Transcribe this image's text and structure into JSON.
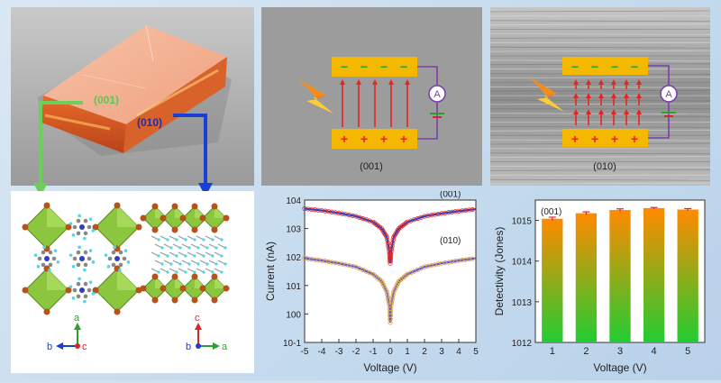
{
  "photo": {
    "label_001": "(001)",
    "label_010": "(010)"
  },
  "structure_left": {
    "axis_a": "a",
    "axis_b": "b",
    "axis_c": "c"
  },
  "structure_right": {
    "axis_c": "c",
    "axis_b": "b",
    "axis_a": "a"
  },
  "device_001": {
    "label": "(001)",
    "meter": "A",
    "top_signs": [
      "−",
      "−",
      "−",
      "−"
    ],
    "bottom_signs": [
      "+",
      "+",
      "+",
      "+"
    ]
  },
  "device_010": {
    "label": "(010)",
    "meter": "A",
    "top_signs": [
      "−",
      "−",
      "−",
      "−"
    ],
    "bottom_signs": [
      "+",
      "+",
      "+",
      "+"
    ]
  },
  "colors": {
    "electrode": "#f4b800",
    "field_arrow": "#e5261f",
    "wire": "#7a3fa8",
    "battery": "#2ca02c",
    "bar_top": "#ff8a00",
    "bar_bottom": "#22cc33"
  },
  "chart_data": [
    {
      "type": "line",
      "xlabel": "Voltage (V)",
      "ylabel": "Current (nA)",
      "xlim": [
        -5,
        5
      ],
      "ylim_log10": [
        -1,
        4
      ],
      "yscale": "log",
      "x_ticks": [
        "-5",
        "-4",
        "-3",
        "-2",
        "-1",
        "0",
        "1",
        "2",
        "3",
        "4",
        "5"
      ],
      "y_ticks": [
        "10-1",
        "100",
        "101",
        "102",
        "103",
        "104"
      ],
      "series": [
        {
          "name": "(001)",
          "x": [
            -5,
            -4,
            -3,
            -2,
            -1,
            -0.5,
            -0.2,
            -0.05,
            0,
            0.05,
            0.2,
            0.5,
            1,
            2,
            3,
            4,
            5
          ],
          "y": [
            5000,
            4300,
            3500,
            2700,
            1700,
            1000,
            500,
            150,
            60,
            150,
            500,
            1000,
            1700,
            2700,
            3400,
            4100,
            4800
          ]
        },
        {
          "name": "(010)",
          "x": [
            -5,
            -4,
            -3,
            -2,
            -1,
            -0.5,
            -0.2,
            -0.05,
            0,
            0.05,
            0.2,
            0.5,
            1,
            2,
            3,
            4,
            5
          ],
          "y": [
            90,
            75,
            60,
            45,
            25,
            14,
            6,
            2,
            0.5,
            2,
            6,
            14,
            25,
            45,
            60,
            75,
            90
          ]
        }
      ]
    },
    {
      "type": "bar",
      "xlabel": "Voltage (V)",
      "ylabel": "Detectivity (Jones)",
      "series_label": "(001)",
      "categories": [
        "1",
        "2",
        "3",
        "4",
        "5"
      ],
      "values": [
        1100000000000000.0,
        1500000000000000.0,
        1800000000000000.0,
        2000000000000000.0,
        1850000000000000.0
      ],
      "errors": [
        100000000000000.0,
        120000000000000.0,
        120000000000000.0,
        80000000000000.0,
        100000000000000.0
      ],
      "yscale": "log",
      "ylim_log10": [
        12,
        15.5
      ],
      "y_ticks": [
        "1012",
        "1013",
        "1014",
        "1015"
      ]
    }
  ]
}
